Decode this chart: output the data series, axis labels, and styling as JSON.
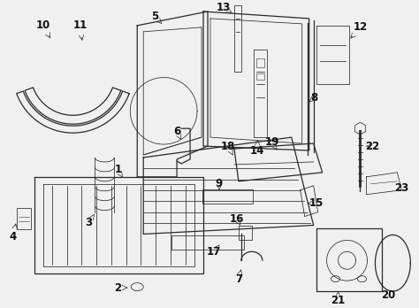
{
  "background": "#f0f0f0",
  "line_color": "#2a2a2a",
  "label_color": "#111111",
  "fig_width": 4.74,
  "fig_height": 3.48,
  "dpi": 100
}
